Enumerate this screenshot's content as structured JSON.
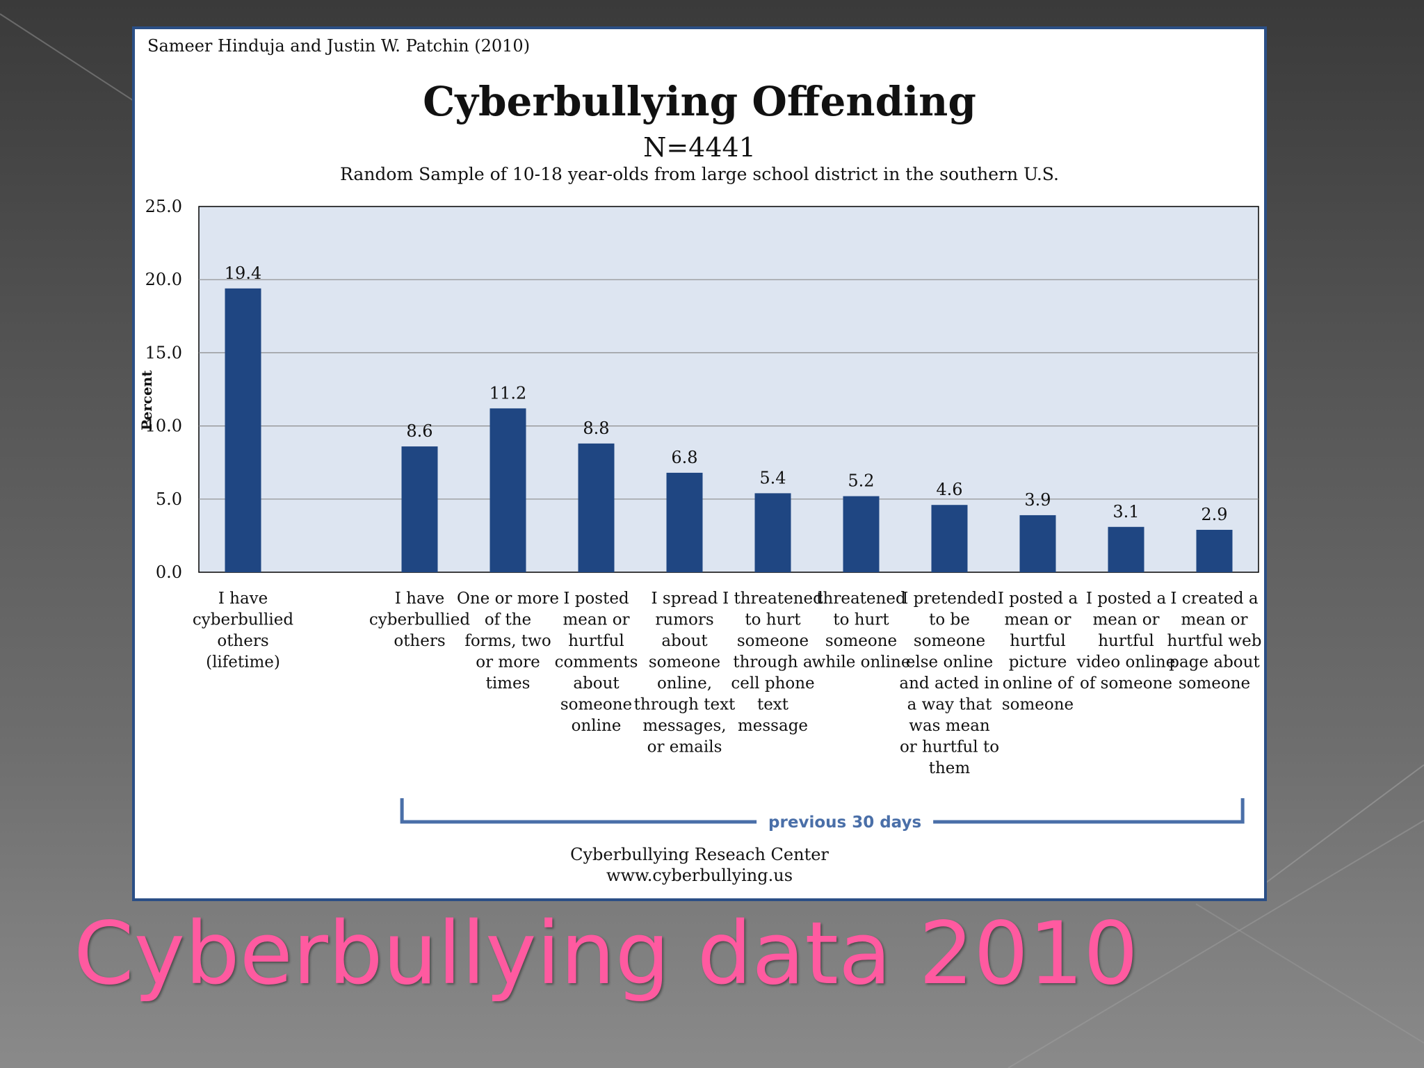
{
  "slide": {
    "title": "Cyberbullying data 2010",
    "title_color": "#ff5aa0"
  },
  "source_credit": "Sameer Hinduja and Justin W. Patchin (2010)",
  "footer": {
    "line1": "Cyberbullying Reseach Center",
    "line2": "www.cyberbullying.us"
  },
  "bracket_label": "previous 30 days",
  "chart_data": {
    "type": "bar",
    "title": "Cyberbullying Offending",
    "subtitle_n": "N=4441",
    "subtitle": "Random Sample of 10-18 year-olds from large school district in the southern U.S.",
    "ylabel": "Percent",
    "xlabel": "",
    "ylim": [
      0,
      25
    ],
    "yticks": [
      "0.0",
      "5.0",
      "10.0",
      "15.0",
      "20.0",
      "25.0"
    ],
    "grid": true,
    "bar_color": "#1f4682",
    "plot_background": "#dde5f1",
    "categories": [
      "I have cyberbullied others (lifetime)",
      "",
      "I have cyberbullied others",
      "One or more of the forms, two or more times",
      "I posted mean or hurtful comments about someone online",
      "I spread rumors about someone online, through text messages, or emails",
      "I threatened to hurt someone through a cell phone text message",
      "threatened to hurt someone while online",
      "I pretended to be someone else online and acted in a way that was mean or hurtful to them",
      "I posted a mean or hurtful picture online of someone",
      "I posted a mean or hurtful video online of someone",
      "I created a mean or hurtful web page about someone"
    ],
    "category_lines": [
      [
        "I have",
        "cyberbullied",
        "others",
        "(lifetime)"
      ],
      [],
      [
        "I have",
        "cyberbullied",
        "others"
      ],
      [
        "One or more",
        "of the",
        "forms, two",
        "or more",
        "times"
      ],
      [
        "I posted",
        "mean or",
        "hurtful",
        "comments",
        "about",
        "someone",
        "online"
      ],
      [
        "I spread",
        "rumors",
        "about",
        "someone",
        "online,",
        "through text",
        "messages,",
        "or emails"
      ],
      [
        "I threatened",
        "to hurt",
        "someone",
        "through a",
        "cell phone",
        "text",
        "message"
      ],
      [
        "threatened",
        "to hurt",
        "someone",
        "while online"
      ],
      [
        "I pretended",
        "to be",
        "someone",
        "else online",
        "and acted in",
        "a way that",
        "was mean",
        "or hurtful to",
        "them"
      ],
      [
        "I posted a",
        "mean or",
        "hurtful",
        "picture",
        "online of",
        "someone"
      ],
      [
        "I posted a",
        "mean or",
        "hurtful",
        "video online",
        "of someone"
      ],
      [
        "I created a",
        "mean or",
        "hurtful web",
        "page about",
        "someone"
      ]
    ],
    "values": [
      19.4,
      null,
      8.6,
      11.2,
      8.8,
      6.8,
      5.4,
      5.2,
      4.6,
      3.9,
      3.1,
      2.9
    ],
    "data_labels": [
      "19.4",
      "",
      "8.6",
      "11.2",
      "8.8",
      "6.8",
      "5.4",
      "5.2",
      "4.6",
      "3.9",
      "3.1",
      "2.9"
    ]
  }
}
